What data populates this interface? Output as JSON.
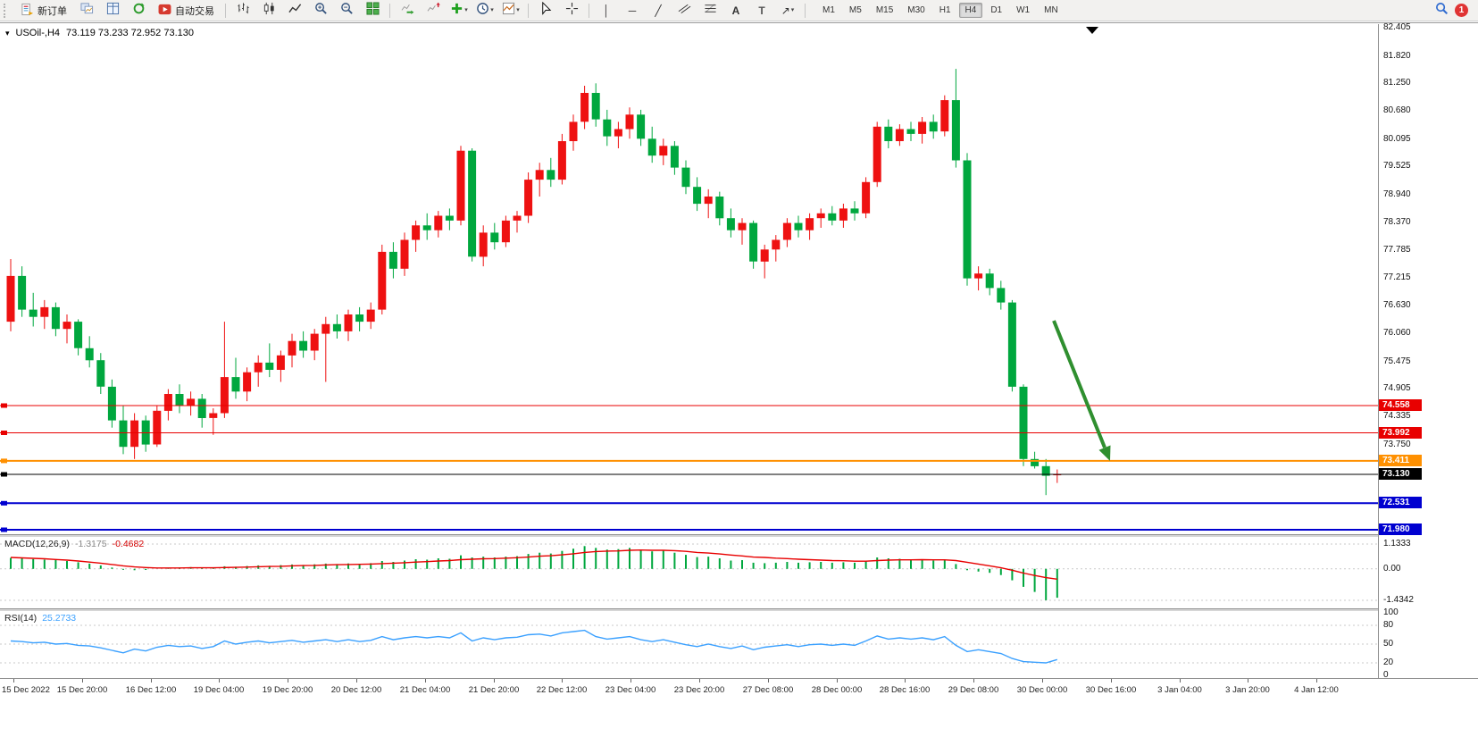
{
  "toolbar": {
    "new_order_label": "新订单",
    "auto_trading_label": "自动交易",
    "timeframes": [
      "M1",
      "M5",
      "M15",
      "M30",
      "H1",
      "H4",
      "D1",
      "W1",
      "MN"
    ],
    "active_timeframe": "H4",
    "notification_count": "1",
    "glyphs": {
      "caret": "▾",
      "vline": "│",
      "hline": "─",
      "trendline": "╱",
      "text_tool": "A",
      "label_tool": "T",
      "arrows_tool": "↗"
    }
  },
  "chart": {
    "collapse_glyph": "▾",
    "symbol_period": "USOil-,H4",
    "ohlc_text": "73.119 73.233 72.952 73.130",
    "price_axis_labels": [
      "82.405",
      "81.820",
      "81.250",
      "80.680",
      "80.095",
      "79.525",
      "78.940",
      "78.370",
      "77.785",
      "77.215",
      "76.630",
      "76.060",
      "75.475",
      "74.905",
      "74.335",
      "73.750"
    ],
    "time_axis_labels": [
      "15 Dec 2022",
      "15 Dec 20:00",
      "16 Dec 12:00",
      "19 Dec 04:00",
      "19 Dec 20:00",
      "20 Dec 12:00",
      "21 Dec 04:00",
      "21 Dec 20:00",
      "22 Dec 12:00",
      "23 Dec 04:00",
      "23 Dec 20:00",
      "27 Dec 08:00",
      "28 Dec 00:00",
      "28 Dec 16:00",
      "29 Dec 08:00",
      "30 Dec 00:00",
      "30 Dec 16:00",
      "3 Jan 04:00",
      "3 Jan 20:00",
      "4 Jan 12:00"
    ],
    "levels": [
      {
        "label": "74.558",
        "price": 74.558,
        "color": "#e80000",
        "width": 1
      },
      {
        "label": "73.992",
        "price": 73.992,
        "color": "#e80000",
        "width": 1
      },
      {
        "label": "73.411",
        "price": 73.411,
        "color": "#ff9000",
        "width": 2
      },
      {
        "label": "73.130",
        "price": 73.13,
        "color": "#000000",
        "width": 1
      },
      {
        "label": "72.531",
        "price": 72.531,
        "color": "#0000d0",
        "width": 2
      },
      {
        "label": "71.980",
        "price": 71.98,
        "color": "#0000d0",
        "width": 2
      }
    ],
    "arrow": {
      "color": "#2f8f2f"
    }
  },
  "chart_data": {
    "type": "candlestick",
    "symbol": "USOil-",
    "timeframe": "H4",
    "price_range": [
      71.98,
      82.405
    ],
    "colors": {
      "bull": "#ee1111",
      "bear": "#00a73e",
      "macd_hist": "#00a73e",
      "macd_signal": "#e80000",
      "rsi_line": "#3aa0ff"
    },
    "candles": [
      [
        76.3,
        77.6,
        76.1,
        77.25
      ],
      [
        77.25,
        77.45,
        76.4,
        76.55
      ],
      [
        76.55,
        76.9,
        76.2,
        76.4
      ],
      [
        76.4,
        76.75,
        76.15,
        76.6
      ],
      [
        76.6,
        76.7,
        76.0,
        76.15
      ],
      [
        76.15,
        76.45,
        75.85,
        76.3
      ],
      [
        76.3,
        76.35,
        75.6,
        75.75
      ],
      [
        75.75,
        76.0,
        75.35,
        75.5
      ],
      [
        75.5,
        75.65,
        74.8,
        74.95
      ],
      [
        74.95,
        75.1,
        74.1,
        74.25
      ],
      [
        74.25,
        74.55,
        73.55,
        73.7
      ],
      [
        73.7,
        74.4,
        73.45,
        74.25
      ],
      [
        74.25,
        74.35,
        73.6,
        73.75
      ],
      [
        73.75,
        74.55,
        73.7,
        74.45
      ],
      [
        74.45,
        74.9,
        74.25,
        74.8
      ],
      [
        74.8,
        75.0,
        74.4,
        74.55
      ],
      [
        74.55,
        74.85,
        74.35,
        74.7
      ],
      [
        74.7,
        74.8,
        74.1,
        74.3
      ],
      [
        74.3,
        74.5,
        73.95,
        74.4
      ],
      [
        74.4,
        76.3,
        74.3,
        75.15
      ],
      [
        75.15,
        75.55,
        74.7,
        74.85
      ],
      [
        74.85,
        75.35,
        74.65,
        75.25
      ],
      [
        75.25,
        75.6,
        74.95,
        75.45
      ],
      [
        75.45,
        75.85,
        75.15,
        75.3
      ],
      [
        75.3,
        75.7,
        75.05,
        75.6
      ],
      [
        75.6,
        76.05,
        75.35,
        75.9
      ],
      [
        75.9,
        76.1,
        75.55,
        75.7
      ],
      [
        75.7,
        76.15,
        75.5,
        76.05
      ],
      [
        76.05,
        76.4,
        75.05,
        76.25
      ],
      [
        76.25,
        76.45,
        75.95,
        76.1
      ],
      [
        76.1,
        76.55,
        75.9,
        76.45
      ],
      [
        76.45,
        76.6,
        76.1,
        76.3
      ],
      [
        76.3,
        76.7,
        76.15,
        76.55
      ],
      [
        76.55,
        77.9,
        76.45,
        77.75
      ],
      [
        77.75,
        77.95,
        77.2,
        77.4
      ],
      [
        77.4,
        78.15,
        77.25,
        78.0
      ],
      [
        78.0,
        78.4,
        77.75,
        78.3
      ],
      [
        78.3,
        78.55,
        78.0,
        78.2
      ],
      [
        78.2,
        78.6,
        78.05,
        78.5
      ],
      [
        78.5,
        78.65,
        78.2,
        78.4
      ],
      [
        78.4,
        79.95,
        78.3,
        79.85
      ],
      [
        79.85,
        79.9,
        77.55,
        77.65
      ],
      [
        77.65,
        78.3,
        77.45,
        78.15
      ],
      [
        78.15,
        78.35,
        77.8,
        77.95
      ],
      [
        77.95,
        78.5,
        77.85,
        78.4
      ],
      [
        78.4,
        78.6,
        78.15,
        78.5
      ],
      [
        78.5,
        79.4,
        78.35,
        79.25
      ],
      [
        79.25,
        79.6,
        78.9,
        79.45
      ],
      [
        79.45,
        79.7,
        79.1,
        79.25
      ],
      [
        79.25,
        80.2,
        79.15,
        80.05
      ],
      [
        80.05,
        80.6,
        79.85,
        80.45
      ],
      [
        80.45,
        81.2,
        80.3,
        81.05
      ],
      [
        81.05,
        81.25,
        80.35,
        80.5
      ],
      [
        80.5,
        80.7,
        79.95,
        80.15
      ],
      [
        80.15,
        80.45,
        79.9,
        80.3
      ],
      [
        80.3,
        80.75,
        80.1,
        80.6
      ],
      [
        80.6,
        80.7,
        79.95,
        80.1
      ],
      [
        80.1,
        80.35,
        79.6,
        79.75
      ],
      [
        79.75,
        80.1,
        79.55,
        79.95
      ],
      [
        79.95,
        80.05,
        79.35,
        79.5
      ],
      [
        79.5,
        79.65,
        78.95,
        79.1
      ],
      [
        79.1,
        79.3,
        78.6,
        78.75
      ],
      [
        78.75,
        79.05,
        78.45,
        78.9
      ],
      [
        78.9,
        79.0,
        78.3,
        78.45
      ],
      [
        78.45,
        78.65,
        78.05,
        78.2
      ],
      [
        78.2,
        78.45,
        77.9,
        78.35
      ],
      [
        78.35,
        78.4,
        77.4,
        77.55
      ],
      [
        77.55,
        77.9,
        77.2,
        77.8
      ],
      [
        77.8,
        78.1,
        77.55,
        78.0
      ],
      [
        78.0,
        78.45,
        77.85,
        78.35
      ],
      [
        78.35,
        78.5,
        78.05,
        78.2
      ],
      [
        78.2,
        78.55,
        78.0,
        78.45
      ],
      [
        78.45,
        78.65,
        78.25,
        78.55
      ],
      [
        78.55,
        78.7,
        78.3,
        78.4
      ],
      [
        78.4,
        78.75,
        78.25,
        78.65
      ],
      [
        78.65,
        78.8,
        78.4,
        78.55
      ],
      [
        78.55,
        79.3,
        78.45,
        79.2
      ],
      [
        79.2,
        80.45,
        79.1,
        80.35
      ],
      [
        80.35,
        80.5,
        79.9,
        80.05
      ],
      [
        80.05,
        80.4,
        79.95,
        80.3
      ],
      [
        80.3,
        80.45,
        80.05,
        80.2
      ],
      [
        80.2,
        80.55,
        80.0,
        80.45
      ],
      [
        80.45,
        80.6,
        80.1,
        80.25
      ],
      [
        80.25,
        81.0,
        80.15,
        80.9
      ],
      [
        80.9,
        81.55,
        79.5,
        79.65
      ],
      [
        79.65,
        79.8,
        77.05,
        77.2
      ],
      [
        77.2,
        77.45,
        76.95,
        77.3
      ],
      [
        77.3,
        77.4,
        76.85,
        77.0
      ],
      [
        77.0,
        77.15,
        76.55,
        76.7
      ],
      [
        76.7,
        76.75,
        74.85,
        74.95
      ],
      [
        74.95,
        75.0,
        73.3,
        73.45
      ],
      [
        73.45,
        73.6,
        73.25,
        73.3
      ],
      [
        73.3,
        73.45,
        72.7,
        73.1
      ],
      [
        73.119,
        73.233,
        72.952,
        73.13
      ]
    ],
    "macd": {
      "label": "MACD(12,26,9)",
      "main_value": "-1.3175",
      "signal_value": "-0.4682",
      "axis_labels": [
        "1.1333",
        "0.00",
        "-1.4342"
      ],
      "range": [
        -1.4342,
        1.1333
      ],
      "histogram": [
        0.5,
        0.48,
        0.45,
        0.42,
        0.4,
        0.36,
        0.3,
        0.24,
        0.16,
        0.06,
        -0.04,
        -0.06,
        -0.05,
        0.0,
        0.05,
        0.06,
        0.08,
        0.05,
        0.06,
        0.12,
        0.1,
        0.13,
        0.16,
        0.14,
        0.17,
        0.2,
        0.18,
        0.21,
        0.24,
        0.22,
        0.25,
        0.23,
        0.26,
        0.36,
        0.32,
        0.38,
        0.44,
        0.42,
        0.48,
        0.46,
        0.62,
        0.52,
        0.56,
        0.52,
        0.56,
        0.58,
        0.68,
        0.74,
        0.7,
        0.82,
        0.92,
        1.04,
        0.96,
        0.88,
        0.9,
        0.96,
        0.88,
        0.8,
        0.84,
        0.74,
        0.64,
        0.54,
        0.56,
        0.48,
        0.38,
        0.4,
        0.28,
        0.26,
        0.28,
        0.32,
        0.28,
        0.3,
        0.32,
        0.28,
        0.3,
        0.28,
        0.36,
        0.52,
        0.48,
        0.46,
        0.42,
        0.44,
        0.38,
        0.42,
        0.22,
        -0.06,
        -0.12,
        -0.18,
        -0.28,
        -0.52,
        -0.82,
        -1.05,
        -1.43,
        -1.3175
      ],
      "signal": [
        0.52,
        0.5,
        0.48,
        0.46,
        0.43,
        0.4,
        0.36,
        0.31,
        0.26,
        0.2,
        0.14,
        0.09,
        0.06,
        0.04,
        0.04,
        0.04,
        0.05,
        0.05,
        0.05,
        0.06,
        0.07,
        0.08,
        0.1,
        0.11,
        0.12,
        0.14,
        0.15,
        0.16,
        0.18,
        0.19,
        0.2,
        0.21,
        0.22,
        0.24,
        0.26,
        0.28,
        0.31,
        0.33,
        0.36,
        0.38,
        0.42,
        0.44,
        0.46,
        0.47,
        0.49,
        0.51,
        0.54,
        0.58,
        0.6,
        0.64,
        0.69,
        0.75,
        0.79,
        0.81,
        0.82,
        0.85,
        0.86,
        0.85,
        0.85,
        0.83,
        0.8,
        0.75,
        0.72,
        0.68,
        0.63,
        0.59,
        0.54,
        0.52,
        0.49,
        0.47,
        0.44,
        0.42,
        0.4,
        0.38,
        0.37,
        0.35,
        0.35,
        0.38,
        0.4,
        0.41,
        0.41,
        0.42,
        0.41,
        0.41,
        0.38,
        0.3,
        0.22,
        0.14,
        0.05,
        -0.06,
        -0.19,
        -0.3,
        -0.4,
        -0.4682
      ]
    },
    "rsi": {
      "label": "RSI(14)",
      "value": "25.2733",
      "axis_labels": [
        "100",
        "80",
        "50",
        "20",
        "0"
      ],
      "levels": [
        80,
        50,
        20
      ],
      "values": [
        55,
        54,
        52,
        53,
        50,
        51,
        48,
        47,
        44,
        40,
        36,
        42,
        39,
        45,
        48,
        46,
        47,
        43,
        46,
        55,
        50,
        53,
        55,
        52,
        54,
        56,
        53,
        55,
        57,
        54,
        57,
        54,
        56,
        62,
        57,
        60,
        62,
        60,
        62,
        60,
        68,
        55,
        60,
        57,
        60,
        61,
        65,
        66,
        63,
        68,
        70,
        72,
        62,
        58,
        60,
        62,
        57,
        54,
        57,
        53,
        49,
        46,
        50,
        46,
        43,
        47,
        41,
        45,
        47,
        49,
        46,
        49,
        50,
        48,
        50,
        48,
        55,
        63,
        58,
        60,
        58,
        60,
        57,
        62,
        48,
        38,
        41,
        38,
        35,
        27,
        22,
        21,
        20,
        25.2733
      ]
    }
  }
}
